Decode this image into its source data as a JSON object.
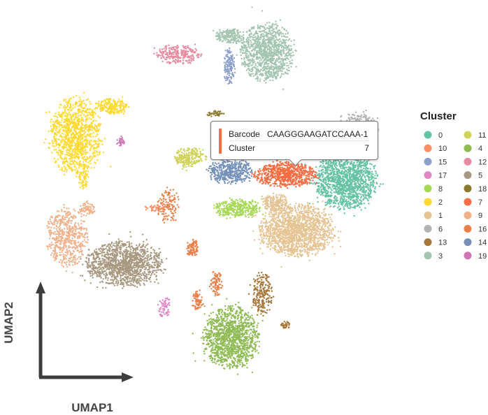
{
  "chart_data": {
    "type": "scatter",
    "title": "",
    "xlabel": "UMAP1",
    "ylabel": "UMAP2",
    "legend": {
      "title": "Cluster",
      "placement": "right",
      "entries": [
        {
          "label": "0",
          "color": "#66c2a5"
        },
        {
          "label": "11",
          "color": "#d0d35a"
        },
        {
          "label": "10",
          "color": "#fc8d62"
        },
        {
          "label": "4",
          "color": "#8fbb55"
        },
        {
          "label": "15",
          "color": "#8da0cb"
        },
        {
          "label": "12",
          "color": "#e78ba0"
        },
        {
          "label": "17",
          "color": "#e086c3"
        },
        {
          "label": "5",
          "color": "#a89880"
        },
        {
          "label": "8",
          "color": "#a6d854"
        },
        {
          "label": "18",
          "color": "#8b7a2e"
        },
        {
          "label": "2",
          "color": "#ffd92f"
        },
        {
          "label": "7",
          "color": "#f46d43"
        },
        {
          "label": "1",
          "color": "#e5c494"
        },
        {
          "label": "9",
          "color": "#f0b08a"
        },
        {
          "label": "6",
          "color": "#b3b3b3"
        },
        {
          "label": "16",
          "color": "#e8804a"
        },
        {
          "label": "13",
          "color": "#a5773a"
        },
        {
          "label": "14",
          "color": "#7490b8"
        },
        {
          "label": "3",
          "color": "#a3c4b0"
        },
        {
          "label": "19",
          "color": "#cf75b5"
        }
      ]
    },
    "tooltip": {
      "barcode_label": "Barcode",
      "barcode_value": "CAAGGGAAGATCCAAA-1",
      "cluster_label": "Cluster",
      "cluster_value": "7",
      "color": "#f46d43"
    },
    "grid": false
  }
}
